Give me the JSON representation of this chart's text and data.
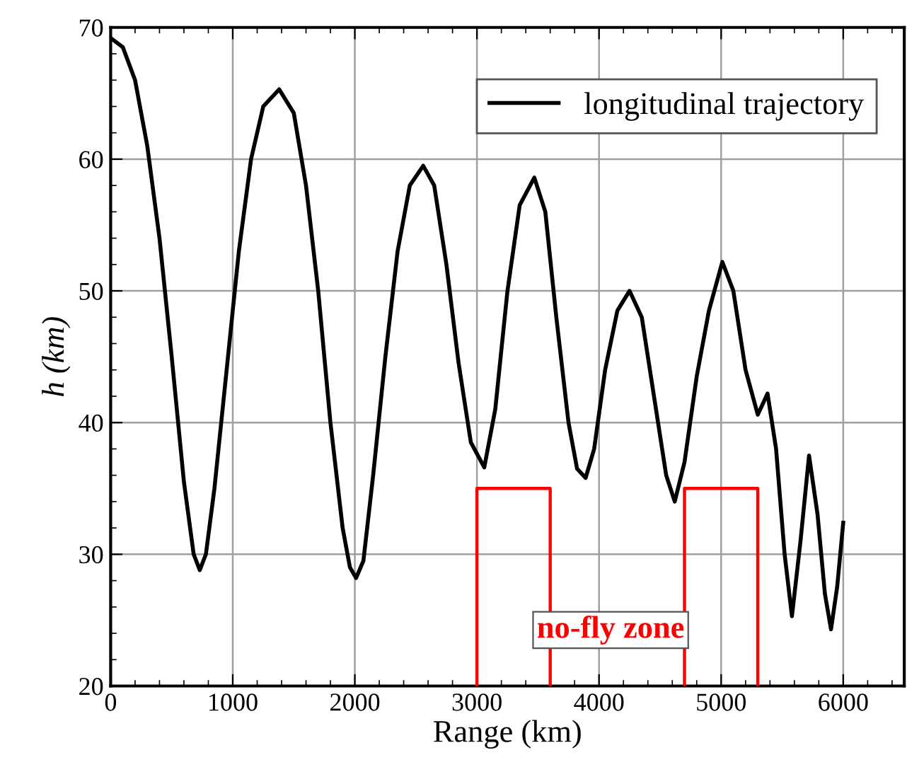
{
  "chart_data": {
    "type": "line",
    "xlabel": "Range (km)",
    "ylabel": "h (km)",
    "xlim": [
      0,
      6500
    ],
    "ylim": [
      20,
      70
    ],
    "xticks": [
      0,
      1000,
      2000,
      3000,
      4000,
      5000,
      6000
    ],
    "yticks": [
      20,
      30,
      40,
      50,
      60,
      70
    ],
    "grid": true,
    "legend": "top right",
    "marker": "none",
    "line_style": "solid",
    "annotations": [
      "no-fly zone"
    ],
    "series": [
      {
        "name": "longitudinal trajectory",
        "color": "#000000",
        "x": [
          0,
          100,
          200,
          300,
          400,
          500,
          600,
          680,
          730,
          780,
          850,
          950,
          1050,
          1150,
          1250,
          1380,
          1500,
          1600,
          1700,
          1800,
          1900,
          1960,
          2010,
          2070,
          2150,
          2250,
          2350,
          2450,
          2560,
          2650,
          2750,
          2850,
          2950,
          3060,
          3150,
          3250,
          3350,
          3470,
          3560,
          3650,
          3750,
          3820,
          3890,
          3960,
          4050,
          4150,
          4250,
          4350,
          4450,
          4550,
          4620,
          4700,
          4800,
          4900,
          5010,
          5100,
          5200,
          5300,
          5380,
          5450,
          5520,
          5580,
          5650,
          5720,
          5790,
          5850,
          5900,
          5950,
          6000
        ],
        "values": [
          69.2,
          68.5,
          66,
          61,
          54,
          45,
          35.5,
          30,
          28.8,
          30,
          35,
          44,
          53,
          60,
          64,
          65.3,
          63.5,
          58,
          50,
          40,
          32,
          29,
          28.2,
          29.5,
          36,
          45,
          53,
          58,
          59.5,
          58,
          52,
          44.5,
          38.5,
          36.6,
          41,
          50,
          56.5,
          58.6,
          56,
          48,
          40,
          36.5,
          35.8,
          38,
          44,
          48.5,
          50,
          48,
          42,
          36,
          34,
          37,
          43.5,
          48.5,
          52.2,
          50,
          44,
          40.6,
          42.2,
          38,
          30,
          25.3,
          31,
          37.5,
          33,
          27,
          24.3,
          27.5,
          32.4
        ]
      },
      {
        "color": "#ff0000",
        "x": [
          3000,
          3000,
          3600,
          3600
        ],
        "values": [
          20,
          35,
          35,
          20
        ]
      },
      {
        "color": "#ff0000",
        "x": [
          4700,
          4700,
          5300,
          5300
        ],
        "values": [
          20,
          35,
          35,
          20
        ]
      }
    ]
  }
}
